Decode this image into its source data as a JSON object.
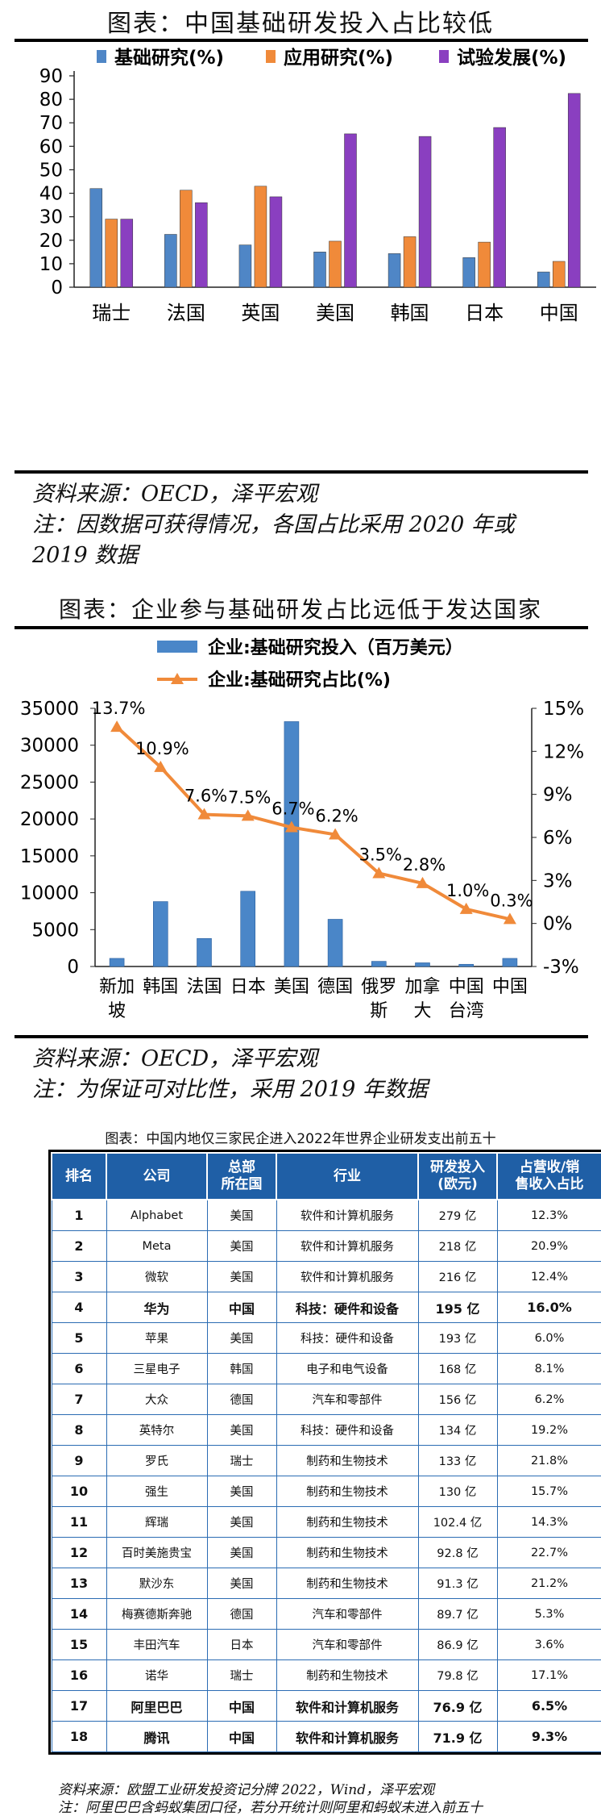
{
  "fig1": {
    "title": "图表：中国基础研发投入占比较低",
    "chart_data": {
      "type": "bar",
      "categories": [
        "瑞士",
        "法国",
        "英国",
        "美国",
        "韩国",
        "日本",
        "中国"
      ],
      "series": [
        {
          "name": "基础研究(%)",
          "color": "#4f86c6",
          "values": [
            42,
            22.5,
            18,
            15,
            14.3,
            12.6,
            6.5
          ]
        },
        {
          "name": "应用研究(%)",
          "color": "#f08a3a",
          "values": [
            29,
            41.3,
            43,
            19.6,
            21.5,
            19.2,
            11
          ]
        },
        {
          "name": "试验发展(%)",
          "color": "#8a3fc0",
          "values": [
            29,
            36,
            38.5,
            65.3,
            64.2,
            68,
            82.5
          ]
        }
      ],
      "yticks": [
        0,
        10,
        20,
        30,
        40,
        50,
        60,
        70,
        80,
        90
      ],
      "ylim": [
        0,
        90
      ]
    },
    "source": "资料来源：OECD，泽平宏观",
    "note_line1": "注：因数据可获得情况，各国占比采用 2020 年或",
    "note_line2": "2019 数据"
  },
  "fig2": {
    "title": "图表：企业参与基础研发占比远低于发达国家",
    "chart_data": {
      "type": "bar+line",
      "categories": [
        "新加坡",
        "韩国",
        "法国",
        "日本",
        "美国",
        "德国",
        "俄罗斯",
        "加拿大",
        "中国台湾",
        "中国"
      ],
      "category_lines": [
        [
          "新加",
          "坡"
        ],
        [
          "韩国"
        ],
        [
          "法国"
        ],
        [
          "日本"
        ],
        [
          "美国"
        ],
        [
          "德国"
        ],
        [
          "俄罗",
          "斯"
        ],
        [
          "加拿",
          "大"
        ],
        [
          "中国",
          "台湾"
        ],
        [
          "中国"
        ]
      ],
      "bar_series": {
        "name": "企业:基础研究投入（百万美元）",
        "color": "#4a86c8",
        "values": [
          1100,
          8800,
          3800,
          10200,
          33200,
          6400,
          700,
          500,
          300,
          1100
        ]
      },
      "line_series": {
        "name": "企业:基础研究占比(%)",
        "color": "#f08a3a",
        "values": [
          13.7,
          10.9,
          7.6,
          7.5,
          6.7,
          6.2,
          3.5,
          2.8,
          1.0,
          0.3
        ]
      },
      "line_labels": [
        "13.7%",
        "10.9%",
        "7.6%",
        "7.5%",
        "6.7%",
        "6.2%",
        "3.5%",
        "2.8%",
        "1.0%",
        "0.3%"
      ],
      "yticks_left": [
        "0",
        "5000",
        "10000",
        "15000",
        "20000",
        "25000",
        "30000",
        "35000"
      ],
      "yticks_right": [
        "-3%",
        "0%",
        "3%",
        "6%",
        "9%",
        "12%",
        "15%"
      ],
      "ylim_left": [
        0,
        35000
      ],
      "ylim_right": [
        -3,
        15
      ]
    },
    "source": "资料来源：OECD，泽平宏观",
    "note": "注：为保证可对比性，采用 2019 年数据"
  },
  "table": {
    "title": "图表：中国内地仅三家民企进入2022年世界企业研发支出前五十",
    "headers": [
      "排名",
      "公司",
      "总部\n所在国",
      "行业",
      "研发投入\n(欧元)",
      "占营收/销\n售收入占比"
    ],
    "rows": [
      [
        "1",
        "Alphabet",
        "美国",
        "软件和计算机服务",
        "279 亿",
        "12.3%"
      ],
      [
        "2",
        "Meta",
        "美国",
        "软件和计算机服务",
        "218 亿",
        "20.9%"
      ],
      [
        "3",
        "微软",
        "美国",
        "软件和计算机服务",
        "216 亿",
        "12.4%"
      ],
      [
        "4",
        "华为",
        "中国",
        "科技：硬件和设备",
        "195 亿",
        "16.0%"
      ],
      [
        "5",
        "苹果",
        "美国",
        "科技：硬件和设备",
        "193 亿",
        "6.0%"
      ],
      [
        "6",
        "三星电子",
        "韩国",
        "电子和电气设备",
        "168 亿",
        "8.1%"
      ],
      [
        "7",
        "大众",
        "德国",
        "汽车和零部件",
        "156 亿",
        "6.2%"
      ],
      [
        "8",
        "英特尔",
        "美国",
        "科技：硬件和设备",
        "134 亿",
        "19.2%"
      ],
      [
        "9",
        "罗氏",
        "瑞士",
        "制药和生物技术",
        "133 亿",
        "21.8%"
      ],
      [
        "10",
        "强生",
        "美国",
        "制药和生物技术",
        "130 亿",
        "15.7%"
      ],
      [
        "11",
        "辉瑞",
        "美国",
        "制药和生物技术",
        "102.4 亿",
        "14.3%"
      ],
      [
        "12",
        "百时美施贵宝",
        "美国",
        "制药和生物技术",
        "92.8 亿",
        "22.7%"
      ],
      [
        "13",
        "默沙东",
        "美国",
        "制药和生物技术",
        "91.3 亿",
        "21.2%"
      ],
      [
        "14",
        "梅赛德斯奔驰",
        "德国",
        "汽车和零部件",
        "89.7 亿",
        "5.3%"
      ],
      [
        "15",
        "丰田汽车",
        "日本",
        "汽车和零部件",
        "86.9 亿",
        "3.6%"
      ],
      [
        "16",
        "诺华",
        "瑞士",
        "制药和生物技术",
        "79.8 亿",
        "17.1%"
      ],
      [
        "17",
        "阿里巴巴",
        "中国",
        "软件和计算机服务",
        "76.9 亿",
        "6.5%"
      ],
      [
        "18",
        "腾讯",
        "中国",
        "软件和计算机服务",
        "71.9 亿",
        "9.3%"
      ]
    ],
    "highlight_rows": [
      4,
      17,
      18
    ],
    "source": "资料来源：欧盟工业研发投资记分牌 2022，Wind，泽平宏观",
    "note": "注：阿里巴巴含蚂蚁集团口径，若分开统计则阿里和蚂蚁未进入前五十"
  }
}
